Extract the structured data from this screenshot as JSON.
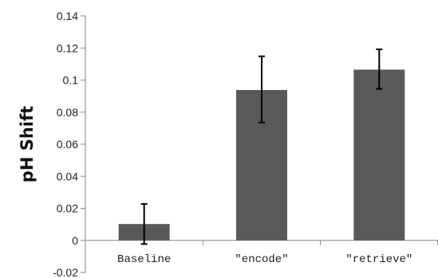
{
  "chart_data": {
    "type": "bar",
    "title": "",
    "xlabel": "",
    "ylabel": "pH Shift",
    "categories": [
      "Baseline",
      "\"encode\"",
      "\"retrieve\""
    ],
    "values": [
      0.0102,
      0.0938,
      0.1065
    ],
    "error_low": [
      -0.0023,
      0.0735,
      0.0945
    ],
    "error_high": [
      0.0227,
      0.1148,
      0.1192
    ],
    "ylim": [
      -0.02,
      0.14
    ],
    "yticks": [
      -0.02,
      0,
      0.02,
      0.04,
      0.06,
      0.08,
      0.1,
      0.12,
      0.14
    ],
    "ytick_labels": [
      "-0.02",
      "0",
      "0.02",
      "0.04",
      "0.06",
      "0.08",
      "0.1",
      "0.12",
      "0.14"
    ],
    "grid": false,
    "legend": "none",
    "colors": {
      "bar": "#595959",
      "error_bar": "#000000",
      "axis": "#868686"
    }
  }
}
